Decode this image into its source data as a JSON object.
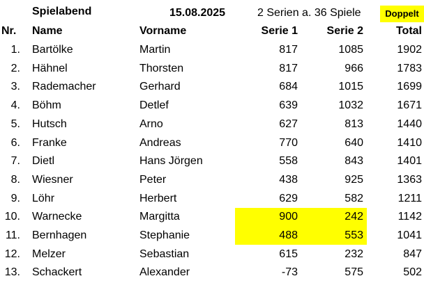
{
  "header": {
    "title": "Spielabend",
    "date": "15.08.2025",
    "series_info": "2 Serien a. 36 Spiele",
    "badge": "Doppelt"
  },
  "columns": {
    "nr": "Nr.",
    "name": "Name",
    "vorname": "Vorname",
    "serie1": "Serie 1",
    "serie2": "Serie 2",
    "total": "Total"
  },
  "colors": {
    "highlight": "#ffff00"
  },
  "rows": [
    {
      "nr": "1.",
      "name": "Bartölke",
      "vorname": "Martin",
      "s1": "817",
      "s2": "1085",
      "total": "1902",
      "highlight": false
    },
    {
      "nr": "2.",
      "name": "Hähnel",
      "vorname": "Thorsten",
      "s1": "817",
      "s2": "966",
      "total": "1783",
      "highlight": false
    },
    {
      "nr": "3.",
      "name": "Rademacher",
      "vorname": "Gerhard",
      "s1": "684",
      "s2": "1015",
      "total": "1699",
      "highlight": false
    },
    {
      "nr": "4.",
      "name": "Böhm",
      "vorname": "Detlef",
      "s1": "639",
      "s2": "1032",
      "total": "1671",
      "highlight": false
    },
    {
      "nr": "5.",
      "name": "Hutsch",
      "vorname": "Arno",
      "s1": "627",
      "s2": "813",
      "total": "1440",
      "highlight": false
    },
    {
      "nr": "6.",
      "name": "Franke",
      "vorname": "Andreas",
      "s1": "770",
      "s2": "640",
      "total": "1410",
      "highlight": false
    },
    {
      "nr": "7.",
      "name": "Dietl",
      "vorname": "Hans Jörgen",
      "s1": "558",
      "s2": "843",
      "total": "1401",
      "highlight": false
    },
    {
      "nr": "8.",
      "name": "Wiesner",
      "vorname": "Peter",
      "s1": "438",
      "s2": "925",
      "total": "1363",
      "highlight": false
    },
    {
      "nr": "9.",
      "name": "Löhr",
      "vorname": "Herbert",
      "s1": "629",
      "s2": "582",
      "total": "1211",
      "highlight": false
    },
    {
      "nr": "10.",
      "name": "Warnecke",
      "vorname": "Margitta",
      "s1": "900",
      "s2": "242",
      "total": "1142",
      "highlight": true
    },
    {
      "nr": "11.",
      "name": "Bernhagen",
      "vorname": "Stephanie",
      "s1": "488",
      "s2": "553",
      "total": "1041",
      "highlight": true
    },
    {
      "nr": "12.",
      "name": "Melzer",
      "vorname": "Sebastian",
      "s1": "615",
      "s2": "232",
      "total": "847",
      "highlight": false
    },
    {
      "nr": "13.",
      "name": "Schackert",
      "vorname": "Alexander",
      "s1": "-73",
      "s2": "575",
      "total": "502",
      "highlight": false
    }
  ]
}
